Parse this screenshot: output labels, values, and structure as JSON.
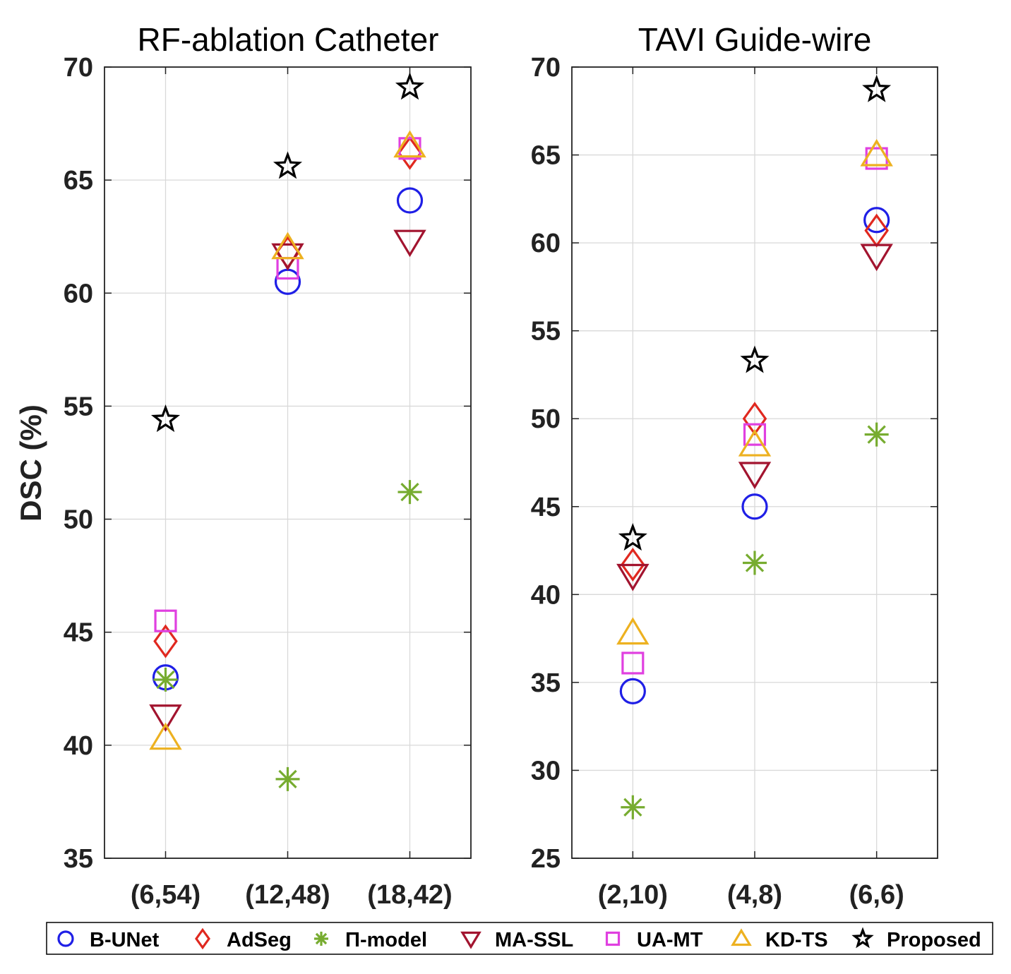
{
  "ylabel": "DSC (%)",
  "chart_data": [
    {
      "type": "scatter",
      "title": "RF-ablation Catheter",
      "ylabel": "DSC (%)",
      "categories": [
        "(6,54)",
        "(12,48)",
        "(18,42)"
      ],
      "ylim": [
        35,
        70
      ],
      "yticks": [
        "35",
        "40",
        "45",
        "50",
        "55",
        "60",
        "65",
        "70"
      ],
      "grid": true,
      "series": [
        {
          "name": "B-UNet",
          "values": [
            43.0,
            60.5,
            64.1
          ]
        },
        {
          "name": "AdSeg",
          "values": [
            44.6,
            61.8,
            66.2
          ]
        },
        {
          "name": "Π-model",
          "values": [
            42.9,
            38.5,
            51.2
          ]
        },
        {
          "name": "MA-SSL",
          "values": [
            41.3,
            61.7,
            62.3
          ]
        },
        {
          "name": "UA-MT",
          "values": [
            45.5,
            61.1,
            66.4
          ]
        },
        {
          "name": "KD-TS",
          "values": [
            40.3,
            62.0,
            66.5
          ]
        },
        {
          "name": "Proposed",
          "values": [
            54.4,
            65.6,
            69.1
          ]
        }
      ]
    },
    {
      "type": "scatter",
      "title": "TAVI Guide-wire",
      "categories": [
        "(2,10)",
        "(4,8)",
        "(6,6)"
      ],
      "ylim": [
        25,
        70
      ],
      "yticks": [
        "25",
        "30",
        "35",
        "40",
        "45",
        "50",
        "55",
        "60",
        "65",
        "70"
      ],
      "grid": true,
      "series": [
        {
          "name": "B-UNet",
          "values": [
            34.5,
            45.0,
            61.3
          ]
        },
        {
          "name": "AdSeg",
          "values": [
            41.7,
            50.0,
            60.7
          ]
        },
        {
          "name": "Π-model",
          "values": [
            27.9,
            41.8,
            49.1
          ]
        },
        {
          "name": "MA-SSL",
          "values": [
            41.1,
            46.9,
            59.3
          ]
        },
        {
          "name": "UA-MT",
          "values": [
            36.1,
            49.1,
            64.8
          ]
        },
        {
          "name": "KD-TS",
          "values": [
            37.8,
            48.5,
            65.0
          ]
        },
        {
          "name": "Proposed",
          "values": [
            43.2,
            53.3,
            68.7
          ]
        }
      ]
    }
  ],
  "legend": {
    "placement": "bottom",
    "items": [
      {
        "label": "B-UNet",
        "marker": "circle",
        "color": "#1f1fe6"
      },
      {
        "label": "AdSeg",
        "marker": "diamond",
        "color": "#e0281f"
      },
      {
        "label": "Π-model",
        "marker": "asterisk",
        "color": "#77ac30"
      },
      {
        "label": "MA-SSL",
        "marker": "triangle-down",
        "color": "#a2142f"
      },
      {
        "label": "UA-MT",
        "marker": "square",
        "color": "#e040e0"
      },
      {
        "label": "KD-TS",
        "marker": "triangle-up",
        "color": "#edb120"
      },
      {
        "label": "Proposed",
        "marker": "star",
        "color": "#000000"
      }
    ]
  }
}
